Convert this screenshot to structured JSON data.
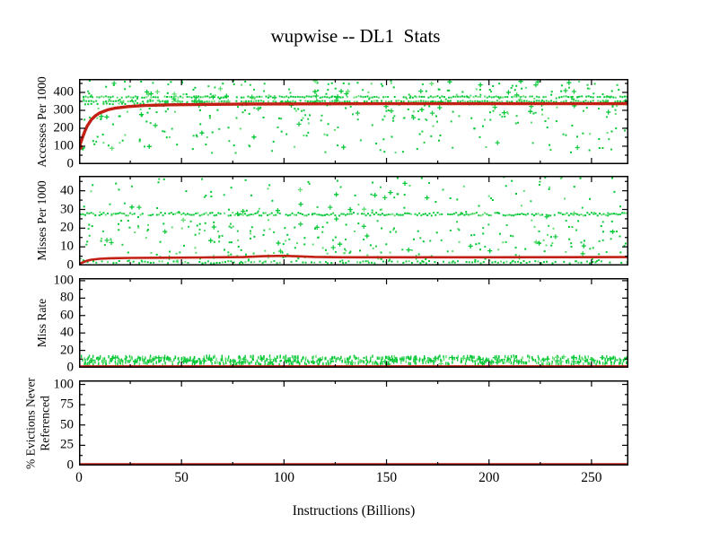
{
  "page": {
    "background": "#ffffff"
  },
  "chart_data": {
    "type": "line",
    "title": "wupwise -- DL1  Stats",
    "xlabel": "Instructions (Billions)",
    "x_range": [
      0,
      268
    ],
    "x_major_ticks": [
      0,
      50,
      100,
      150,
      200,
      250
    ],
    "x_minor_step": 25,
    "grid": false,
    "legend_position": "none",
    "colors": {
      "interval_scatter_green": "#00c832",
      "cumulative_line_red": "#c22015",
      "axis_black": "#000000"
    },
    "panels": [
      {
        "ylabel": "Accesses Per 1000",
        "y_range": [
          0,
          475
        ],
        "y_major_ticks": [
          0,
          100,
          200,
          300,
          400
        ],
        "y_minor_step": 50,
        "red_line": [
          [
            0,
            95
          ],
          [
            1,
            125
          ],
          [
            2,
            158
          ],
          [
            3,
            188
          ],
          [
            4,
            212
          ],
          [
            6,
            248
          ],
          [
            8,
            270
          ],
          [
            10,
            285
          ],
          [
            14,
            303
          ],
          [
            18,
            313
          ],
          [
            24,
            321
          ],
          [
            32,
            327
          ],
          [
            45,
            331
          ],
          [
            60,
            333
          ],
          [
            80,
            335
          ],
          [
            110,
            336
          ],
          [
            150,
            337
          ],
          [
            200,
            337
          ],
          [
            268,
            337
          ]
        ],
        "green_scatter": [
          {
            "kind": "hline",
            "y": 375,
            "jitter": 4,
            "xstep": 1.1,
            "density": 0.8
          },
          {
            "kind": "hline",
            "y": 350,
            "jitter": 4,
            "xstep": 1.2,
            "density": 0.75
          },
          {
            "kind": "hline",
            "y": 336,
            "jitter": 3,
            "xstep": 1.5,
            "density": 0.6
          },
          {
            "kind": "cloud",
            "ymin": 245,
            "ymax": 465,
            "xstep": 2.2,
            "nmin": 1,
            "nmax": 4,
            "plus_prob": 0.18,
            "bias": 1
          },
          {
            "kind": "cloud",
            "ymin": 60,
            "ymax": 245,
            "xstep": 2.3,
            "nmin": 0,
            "nmax": 2,
            "plus_prob": 0.08,
            "bias": 1
          },
          {
            "kind": "hline",
            "y": 92,
            "jitter": 8,
            "xstep": 0.6,
            "density": 0.9,
            "xmin": 0,
            "xmax": 2.5
          }
        ]
      },
      {
        "ylabel": "Misses Per 1000",
        "y_range": [
          0,
          48
        ],
        "y_major_ticks": [
          0,
          10,
          20,
          30,
          40
        ],
        "y_minor_step": 5,
        "red_line": [
          [
            0,
            0.8
          ],
          [
            2,
            1.8
          ],
          [
            4,
            2.6
          ],
          [
            6,
            3.1
          ],
          [
            10,
            3.6
          ],
          [
            15,
            3.9
          ],
          [
            25,
            4.1
          ],
          [
            40,
            4.2
          ],
          [
            60,
            4.3
          ],
          [
            80,
            4.5
          ],
          [
            90,
            5.0
          ],
          [
            100,
            5.2
          ],
          [
            108,
            4.9
          ],
          [
            115,
            4.6
          ],
          [
            130,
            4.4
          ],
          [
            160,
            4.4
          ],
          [
            200,
            4.4
          ],
          [
            268,
            4.5
          ]
        ],
        "green_scatter": [
          {
            "kind": "hline",
            "y": 27.5,
            "jitter": 0.8,
            "xstep": 1.0,
            "density": 0.9
          },
          {
            "kind": "hline",
            "y": 1.8,
            "jitter": 0.6,
            "xstep": 1.4,
            "density": 0.7
          },
          {
            "kind": "cloud",
            "ymin": 1,
            "ymax": 47.5,
            "xstep": 2.2,
            "nmin": 1,
            "nmax": 3,
            "plus_prob": 0.15,
            "bias": 1
          },
          {
            "kind": "cloud",
            "ymin": 2,
            "ymax": 24,
            "xstep": 2.2,
            "nmin": 0,
            "nmax": 3,
            "plus_prob": 0.1,
            "bias": 1
          }
        ]
      },
      {
        "ylabel": "Miss Rate",
        "y_range": [
          0,
          103
        ],
        "y_major_ticks": [
          0,
          20,
          40,
          60,
          80,
          100
        ],
        "y_minor_step": 10,
        "red_line": [
          [
            0,
            1.2
          ],
          [
            4,
            1.6
          ],
          [
            268,
            1.6
          ]
        ],
        "green_scatter": [
          {
            "kind": "cloud",
            "ymin": 3.5,
            "ymax": 13.5,
            "xstep": 1.35,
            "nmin": 2,
            "nmax": 4,
            "plus_prob": 0.04,
            "bias": 1,
            "marker": "dash"
          },
          {
            "kind": "cloud",
            "ymin": 6,
            "ymax": 12,
            "xstep": 2.8,
            "nmin": 0,
            "nmax": 2,
            "plus_prob": 0.5,
            "bias": 1
          }
        ]
      },
      {
        "ylabel": "% Evictions Never\nReferenced",
        "y_range": [
          0,
          105
        ],
        "y_major_ticks": [
          0,
          25,
          50,
          75,
          100
        ],
        "y_minor_step": 12.5,
        "red_line": [
          [
            0,
            0.5
          ],
          [
            268,
            0.5
          ]
        ],
        "green_scatter": []
      }
    ]
  }
}
